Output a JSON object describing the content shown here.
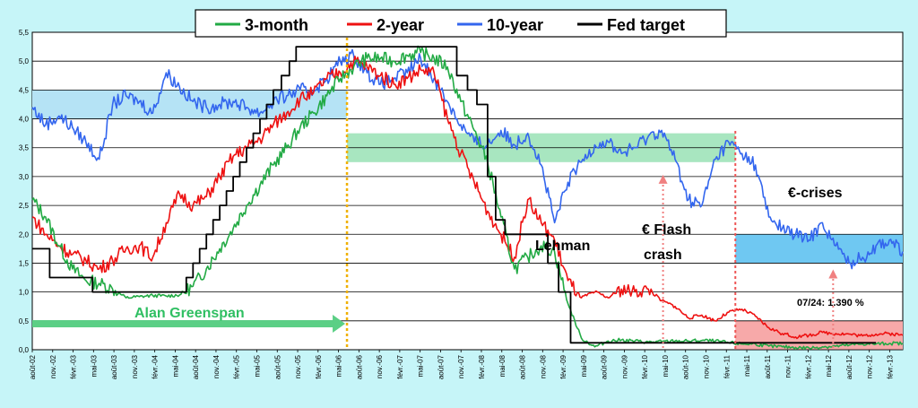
{
  "chart_data": {
    "type": "line",
    "title": "",
    "xlabel": "",
    "ylabel": "",
    "ylim": [
      0,
      5.5
    ],
    "y_ticks": [
      "0,0",
      "0,5",
      "1,0",
      "1,5",
      "2,0",
      "2,5",
      "3,0",
      "3,5",
      "4,0",
      "4,5",
      "5,0",
      "5,5"
    ],
    "x_ticks": [
      "août-02",
      "nov.-02",
      "févr.-03",
      "mai-03",
      "août-03",
      "nov.-03",
      "févr.-04",
      "mai-04",
      "août-04",
      "nov.-04",
      "févr.-05",
      "mai-05",
      "août-05",
      "nov.-05",
      "févr.-06",
      "mai-06",
      "août-06",
      "nov.-06",
      "févr.-07",
      "mai-07",
      "août-07",
      "nov.-07",
      "févr.-08",
      "mai-08",
      "août-08",
      "nov.-08",
      "févr.-09",
      "mai-09",
      "août-09",
      "nov.-09",
      "févr.-10",
      "mai-10",
      "août-10",
      "nov.-10",
      "févr.-11",
      "mai-11",
      "août-11",
      "nov.-11",
      "févr.-12",
      "mai-12",
      "août-12",
      "nov.-12",
      "févr.-13"
    ],
    "grid": true,
    "legend_position": "top-center",
    "series": [
      {
        "name": "3-month",
        "color": "#22aa44",
        "points": [
          [
            0,
            2.6
          ],
          [
            1,
            2.3
          ],
          [
            2,
            1.8
          ],
          [
            3,
            1.4
          ],
          [
            4,
            1.2
          ],
          [
            5,
            1.15
          ],
          [
            6,
            1.05
          ],
          [
            7,
            0.9
          ],
          [
            8,
            0.92
          ],
          [
            9,
            0.94
          ],
          [
            10,
            0.93
          ],
          [
            11,
            0.95
          ],
          [
            12,
            1.1
          ],
          [
            13,
            1.4
          ],
          [
            14,
            1.75
          ],
          [
            15,
            2.1
          ],
          [
            16,
            2.5
          ],
          [
            17,
            2.85
          ],
          [
            18,
            3.2
          ],
          [
            19,
            3.5
          ],
          [
            20,
            3.85
          ],
          [
            21,
            4.1
          ],
          [
            22,
            4.4
          ],
          [
            23,
            4.7
          ],
          [
            24,
            4.9
          ],
          [
            25,
            5.05
          ],
          [
            26,
            5.05
          ],
          [
            27,
            5.0
          ],
          [
            28,
            5.1
          ],
          [
            29,
            5.15
          ],
          [
            30,
            5.05
          ],
          [
            31,
            4.9
          ],
          [
            32,
            4.3
          ],
          [
            33,
            3.8
          ],
          [
            34,
            3.25
          ],
          [
            35,
            2.3
          ],
          [
            36,
            1.4
          ],
          [
            37,
            1.6
          ],
          [
            38,
            1.8
          ],
          [
            39,
            1.7
          ],
          [
            40,
            0.8
          ],
          [
            41,
            0.2
          ],
          [
            42,
            0.05
          ],
          [
            43,
            0.15
          ],
          [
            44,
            0.17
          ],
          [
            45,
            0.15
          ],
          [
            46,
            0.13
          ],
          [
            47,
            0.14
          ],
          [
            48,
            0.15
          ],
          [
            49,
            0.15
          ],
          [
            50,
            0.16
          ],
          [
            51,
            0.15
          ],
          [
            52,
            0.12
          ],
          [
            53,
            0.1
          ],
          [
            54,
            0.1
          ],
          [
            55,
            0.06
          ],
          [
            56,
            0.05
          ],
          [
            57,
            0.04
          ],
          [
            58,
            0.03
          ],
          [
            59,
            0.05
          ],
          [
            60,
            0.06
          ],
          [
            61,
            0.08
          ],
          [
            62,
            0.1
          ],
          [
            63,
            0.1
          ],
          [
            64,
            0.11
          ],
          [
            65,
            0.11
          ]
        ]
      },
      {
        "name": "2-year",
        "color": "#ee1111",
        "points": [
          [
            0,
            2.3
          ],
          [
            1,
            2.0
          ],
          [
            2,
            1.8
          ],
          [
            3,
            1.65
          ],
          [
            4,
            1.55
          ],
          [
            5,
            1.4
          ],
          [
            6,
            1.55
          ],
          [
            7,
            1.75
          ],
          [
            8,
            1.8
          ],
          [
            9,
            1.6
          ],
          [
            10,
            2.2
          ],
          [
            11,
            2.7
          ],
          [
            12,
            2.5
          ],
          [
            13,
            2.65
          ],
          [
            14,
            3.0
          ],
          [
            15,
            3.35
          ],
          [
            16,
            3.5
          ],
          [
            17,
            3.65
          ],
          [
            18,
            3.9
          ],
          [
            19,
            4.1
          ],
          [
            20,
            4.35
          ],
          [
            21,
            4.45
          ],
          [
            22,
            4.7
          ],
          [
            23,
            4.8
          ],
          [
            24,
            5.0
          ],
          [
            25,
            4.9
          ],
          [
            26,
            4.75
          ],
          [
            27,
            4.6
          ],
          [
            28,
            4.7
          ],
          [
            29,
            4.85
          ],
          [
            30,
            4.8
          ],
          [
            31,
            4.0
          ],
          [
            32,
            3.4
          ],
          [
            33,
            2.9
          ],
          [
            34,
            2.4
          ],
          [
            35,
            2.0
          ],
          [
            36,
            1.6
          ],
          [
            37,
            2.6
          ],
          [
            38,
            2.2
          ],
          [
            39,
            1.9
          ],
          [
            40,
            1.2
          ],
          [
            41,
            0.9
          ],
          [
            42,
            1.0
          ],
          [
            43,
            0.9
          ],
          [
            44,
            1.05
          ],
          [
            45,
            1.0
          ],
          [
            46,
            1.05
          ],
          [
            47,
            0.85
          ],
          [
            48,
            0.75
          ],
          [
            49,
            0.55
          ],
          [
            50,
            0.6
          ],
          [
            51,
            0.5
          ],
          [
            52,
            0.65
          ],
          [
            53,
            0.7
          ],
          [
            54,
            0.58
          ],
          [
            55,
            0.38
          ],
          [
            56,
            0.28
          ],
          [
            57,
            0.22
          ],
          [
            58,
            0.25
          ],
          [
            59,
            0.3
          ],
          [
            60,
            0.28
          ],
          [
            61,
            0.27
          ],
          [
            62,
            0.24
          ],
          [
            63,
            0.27
          ],
          [
            64,
            0.28
          ],
          [
            65,
            0.25
          ]
        ]
      },
      {
        "name": "10-year",
        "color": "#3366ee",
        "points": [
          [
            0,
            4.2
          ],
          [
            1,
            3.9
          ],
          [
            2,
            4.05
          ],
          [
            3,
            3.85
          ],
          [
            4,
            3.6
          ],
          [
            5,
            3.3
          ],
          [
            6,
            4.25
          ],
          [
            7,
            4.4
          ],
          [
            8,
            4.3
          ],
          [
            9,
            4.1
          ],
          [
            10,
            4.8
          ],
          [
            11,
            4.55
          ],
          [
            12,
            4.3
          ],
          [
            13,
            4.2
          ],
          [
            14,
            4.25
          ],
          [
            15,
            4.3
          ],
          [
            16,
            4.2
          ],
          [
            17,
            4.1
          ],
          [
            18,
            4.3
          ],
          [
            19,
            4.4
          ],
          [
            20,
            4.5
          ],
          [
            21,
            4.5
          ],
          [
            22,
            4.7
          ],
          [
            23,
            5.0
          ],
          [
            24,
            5.1
          ],
          [
            25,
            4.8
          ],
          [
            26,
            4.6
          ],
          [
            27,
            4.7
          ],
          [
            28,
            4.8
          ],
          [
            29,
            5.05
          ],
          [
            30,
            4.7
          ],
          [
            31,
            4.3
          ],
          [
            32,
            3.9
          ],
          [
            33,
            3.6
          ],
          [
            34,
            3.55
          ],
          [
            35,
            3.8
          ],
          [
            36,
            3.55
          ],
          [
            37,
            3.75
          ],
          [
            38,
            3.2
          ],
          [
            39,
            2.2
          ],
          [
            40,
            2.9
          ],
          [
            41,
            3.25
          ],
          [
            42,
            3.55
          ],
          [
            43,
            3.6
          ],
          [
            44,
            3.4
          ],
          [
            45,
            3.5
          ],
          [
            46,
            3.7
          ],
          [
            47,
            3.8
          ],
          [
            48,
            3.3
          ],
          [
            49,
            2.6
          ],
          [
            50,
            2.5
          ],
          [
            51,
            3.3
          ],
          [
            52,
            3.6
          ],
          [
            53,
            3.4
          ],
          [
            54,
            3.2
          ],
          [
            55,
            2.3
          ],
          [
            56,
            2.1
          ],
          [
            57,
            2.0
          ],
          [
            58,
            1.9
          ],
          [
            59,
            2.2
          ],
          [
            60,
            1.8
          ],
          [
            61,
            1.5
          ],
          [
            62,
            1.6
          ],
          [
            63,
            1.8
          ],
          [
            64,
            1.9
          ],
          [
            65,
            1.7
          ]
        ]
      },
      {
        "name": "Fed target",
        "color": "#000000",
        "points": [
          [
            0,
            1.75
          ],
          [
            1.3,
            1.75
          ],
          [
            1.3,
            1.25
          ],
          [
            4.5,
            1.25
          ],
          [
            4.5,
            1.0
          ],
          [
            11.5,
            1.0
          ],
          [
            11.5,
            1.25
          ],
          [
            12,
            1.25
          ],
          [
            12,
            1.5
          ],
          [
            12.5,
            1.5
          ],
          [
            12.5,
            1.75
          ],
          [
            13,
            1.75
          ],
          [
            13,
            2.0
          ],
          [
            13.5,
            2.0
          ],
          [
            13.5,
            2.25
          ],
          [
            14,
            2.25
          ],
          [
            14,
            2.5
          ],
          [
            14.5,
            2.5
          ],
          [
            14.5,
            2.75
          ],
          [
            15,
            2.75
          ],
          [
            15,
            3.0
          ],
          [
            15.5,
            3.0
          ],
          [
            15.5,
            3.25
          ],
          [
            16,
            3.25
          ],
          [
            16,
            3.5
          ],
          [
            16.5,
            3.5
          ],
          [
            16.5,
            3.75
          ],
          [
            17,
            3.75
          ],
          [
            17,
            4.0
          ],
          [
            17.5,
            4.0
          ],
          [
            17.5,
            4.25
          ],
          [
            18,
            4.25
          ],
          [
            18,
            4.5
          ],
          [
            18.6,
            4.5
          ],
          [
            18.6,
            4.75
          ],
          [
            19.2,
            4.75
          ],
          [
            19.2,
            5.0
          ],
          [
            19.7,
            5.0
          ],
          [
            19.7,
            5.25
          ],
          [
            31.7,
            5.25
          ],
          [
            31.7,
            4.75
          ],
          [
            32.5,
            4.75
          ],
          [
            32.5,
            4.5
          ],
          [
            33.2,
            4.5
          ],
          [
            33.2,
            4.25
          ],
          [
            34,
            4.25
          ],
          [
            34,
            3.0
          ],
          [
            34.6,
            3.0
          ],
          [
            34.6,
            2.25
          ],
          [
            35.3,
            2.25
          ],
          [
            35.3,
            2.0
          ],
          [
            38.5,
            2.0
          ],
          [
            38.5,
            1.5
          ],
          [
            39.3,
            1.5
          ],
          [
            39.3,
            1.0
          ],
          [
            40.2,
            1.0
          ],
          [
            40.2,
            0.12
          ],
          [
            63,
            0.12
          ]
        ]
      }
    ]
  },
  "legend": {
    "items": [
      {
        "label": "3-month",
        "color": "#22aa44"
      },
      {
        "label": "2-year",
        "color": "#ee1111"
      },
      {
        "label": "10-year",
        "color": "#3366ee"
      },
      {
        "label": "Fed target",
        "color": "#000000"
      }
    ]
  },
  "annotations": {
    "greenspan": "Alan Greenspan",
    "lehman": "Lehman",
    "flash_crash_line1": "€ Flash",
    "flash_crash_line2": "crash",
    "euro_crises": "€-crises",
    "low_value": "07/24: 1.390 %"
  },
  "colors": {
    "background": "#c6f5f8",
    "plot_background": "#ffffff",
    "greenspan_arrow": "#5bcf85",
    "greenspan_divider": "#f0b000",
    "euro_divider": "#ee5555"
  }
}
